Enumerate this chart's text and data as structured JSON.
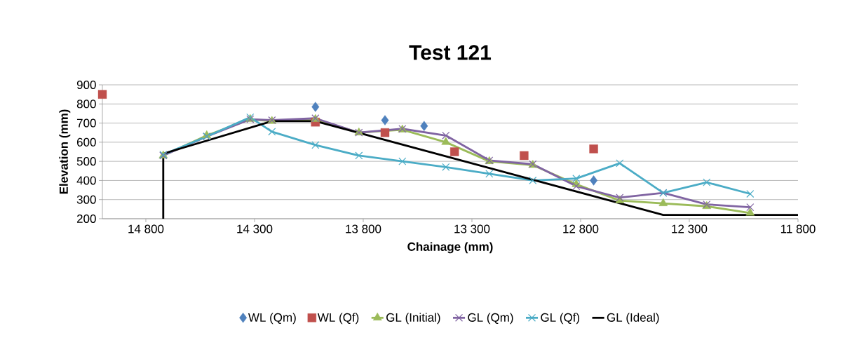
{
  "chart_data": {
    "type": "line",
    "title": "Test 121",
    "xlabel": "Chainage (mm)",
    "ylabel": "Elevation (mm)",
    "xlim": [
      15000,
      11800
    ],
    "ylim": [
      200,
      900
    ],
    "xticks": [
      {
        "value": 14800,
        "label": "14 800"
      },
      {
        "value": 14300,
        "label": "14 300"
      },
      {
        "value": 13800,
        "label": "13 800"
      },
      {
        "value": 13300,
        "label": "13 300"
      },
      {
        "value": 12800,
        "label": "12 800"
      },
      {
        "value": 12300,
        "label": "12 300"
      },
      {
        "value": 11800,
        "label": "11 800"
      }
    ],
    "yticks": [
      200,
      300,
      400,
      500,
      600,
      700,
      800,
      900
    ],
    "grid": "y",
    "legend": "bottom",
    "series": [
      {
        "name": "WL (Qm)",
        "type": "scatter",
        "marker": "diamond",
        "color": "#4f81bd",
        "x": [
          14020,
          13700,
          13520,
          12740
        ],
        "values": [
          785,
          715,
          685,
          400
        ]
      },
      {
        "name": "WL (Qf)",
        "type": "scatter",
        "marker": "square",
        "color": "#c0504d",
        "x": [
          15000,
          14020,
          13700,
          13380,
          13060,
          12740
        ],
        "values": [
          850,
          705,
          650,
          550,
          530,
          565
        ]
      },
      {
        "name": "GL (Initial)",
        "marker": "triangle",
        "color": "#9bbb59",
        "x": [
          14720,
          14520,
          14320,
          14220,
          14020,
          13820,
          13620,
          13420,
          13220,
          13020,
          12820,
          12620,
          12420,
          12220,
          12020
        ],
        "values": [
          530,
          635,
          720,
          710,
          720,
          650,
          665,
          600,
          500,
          480,
          380,
          295,
          280,
          265,
          230
        ]
      },
      {
        "name": "GL (Qm)",
        "marker": "cross",
        "color": "#8064a2",
        "x": [
          14720,
          14520,
          14320,
          14220,
          14020,
          13820,
          13620,
          13420,
          13220,
          13020,
          12820,
          12620,
          12420,
          12220,
          12020
        ],
        "values": [
          530,
          630,
          720,
          715,
          725,
          650,
          670,
          635,
          505,
          485,
          370,
          310,
          335,
          275,
          260
        ]
      },
      {
        "name": "GL (Qf)",
        "marker": "cross",
        "color": "#4bacc6",
        "x": [
          14720,
          14520,
          14320,
          14220,
          14020,
          13820,
          13620,
          13420,
          13220,
          13020,
          12820,
          12620,
          12420,
          12220,
          12020
        ],
        "values": [
          535,
          630,
          730,
          655,
          585,
          530,
          500,
          470,
          435,
          400,
          410,
          490,
          335,
          390,
          330
        ]
      },
      {
        "name": "GL (Ideal)",
        "marker": "none",
        "color": "#000000",
        "x": [
          14720,
          14720,
          14220,
          14020,
          12420,
          11800
        ],
        "values": [
          200,
          540,
          710,
          710,
          220,
          220
        ]
      }
    ]
  }
}
